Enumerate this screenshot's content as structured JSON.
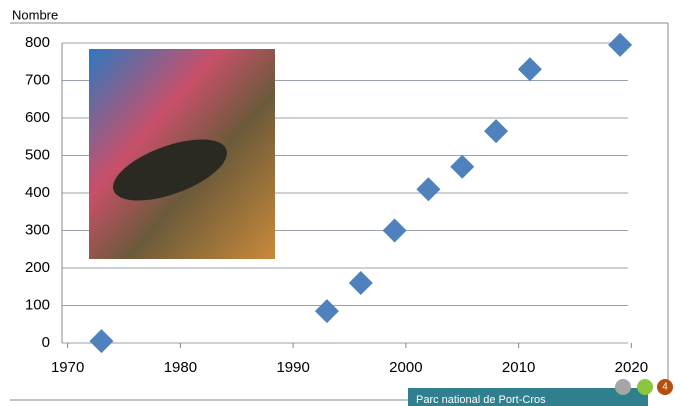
{
  "chart_data": {
    "type": "scatter",
    "y_label": "Nombre",
    "x": [
      1973,
      1993,
      1996,
      1999,
      2002,
      2005,
      2008,
      2011,
      2019
    ],
    "values": [
      5,
      85,
      160,
      300,
      410,
      470,
      565,
      730,
      795
    ],
    "color": "#4f81bd",
    "marker": "diamond",
    "xlim": [
      1969.5,
      2020.5
    ],
    "xticks": [
      1970,
      1980,
      1990,
      2000,
      2010,
      2020
    ],
    "ylim": [
      0,
      800
    ],
    "yticks": [
      0,
      100,
      200,
      300,
      400,
      500,
      600,
      700,
      800
    ],
    "grid": true
  },
  "footer": {
    "label": "Parc national de Port-Cros",
    "page": "4"
  }
}
